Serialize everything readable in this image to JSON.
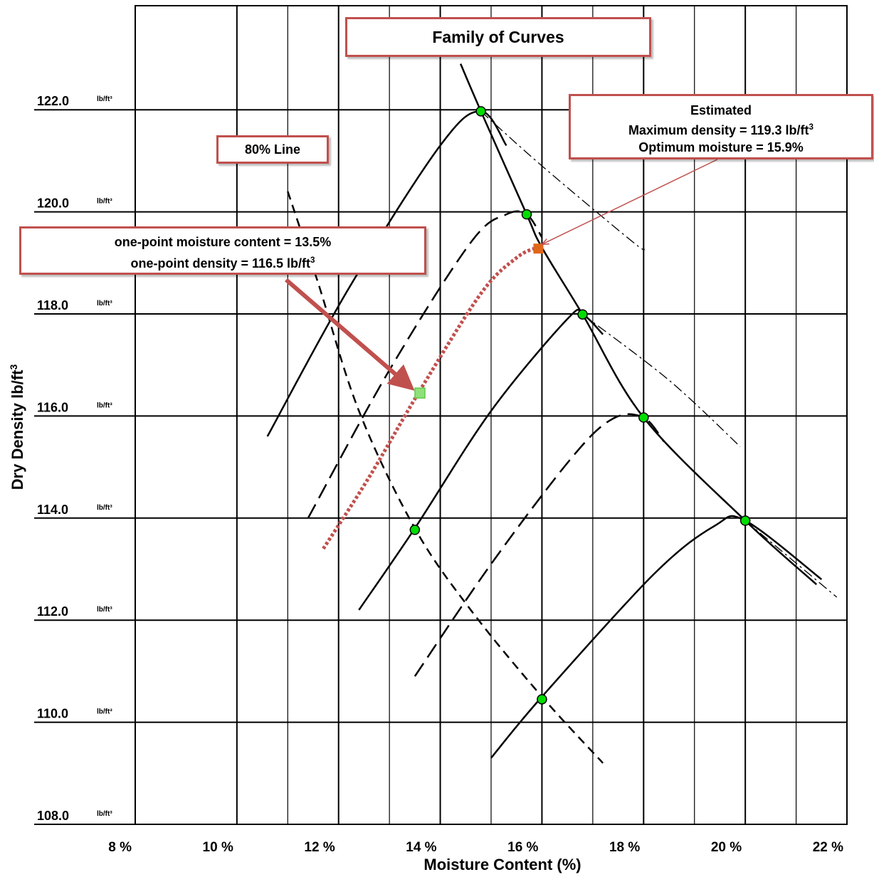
{
  "chart_data": {
    "type": "line",
    "title": "Family of Curves",
    "xlabel": "Moisture Content (%)",
    "ylabel": "Dry Density lb/ft3",
    "xlim": [
      8,
      22
    ],
    "ylim": [
      108,
      124
    ],
    "x_ticks": [
      "8 %",
      "10 %",
      "12 %",
      "14 %",
      "16 %",
      "18 %",
      "20 %",
      "22 %"
    ],
    "y_ticks": [
      "108.0",
      "110.0",
      "112.0",
      "114.0",
      "116.0",
      "118.0",
      "120.0",
      "122.0"
    ],
    "y_tick_unit": "lb/ft³",
    "grid": true,
    "series": [
      {
        "style": "solid",
        "points": [
          [
            10.6,
            115.6
          ],
          [
            12.2,
            118.5
          ],
          [
            14.0,
            121.3
          ],
          [
            14.8,
            121.97
          ],
          [
            15.3,
            121.3
          ]
        ]
      },
      {
        "style": "dashed",
        "points": [
          [
            11.4,
            114.0
          ],
          [
            13.0,
            116.9
          ],
          [
            14.6,
            119.4
          ],
          [
            15.3,
            119.95
          ],
          [
            15.7,
            119.95
          ],
          [
            16.0,
            119.5
          ]
        ]
      },
      {
        "style": "solid",
        "points": [
          [
            12.4,
            112.2
          ],
          [
            13.5,
            113.8
          ],
          [
            15.0,
            116.1
          ],
          [
            16.5,
            117.9
          ],
          [
            16.8,
            117.99
          ],
          [
            17.2,
            117.6
          ]
        ]
      },
      {
        "style": "dashed",
        "points": [
          [
            13.5,
            110.9
          ],
          [
            15.0,
            113.1
          ],
          [
            16.6,
            115.2
          ],
          [
            17.4,
            115.95
          ],
          [
            18.0,
            115.97
          ],
          [
            18.4,
            115.5
          ]
        ]
      },
      {
        "style": "solid",
        "points": [
          [
            15.0,
            109.3
          ],
          [
            16.0,
            110.5
          ],
          [
            18.2,
            112.9
          ],
          [
            19.4,
            113.85
          ],
          [
            20.0,
            113.95
          ],
          [
            21.5,
            112.8
          ]
        ]
      },
      {
        "style": "solid",
        "role": "line of optimums",
        "points": [
          [
            14.4,
            122.9
          ],
          [
            14.8,
            121.97
          ],
          [
            15.7,
            119.95
          ],
          [
            16.0,
            119.3
          ],
          [
            16.8,
            117.99
          ],
          [
            18.0,
            115.97
          ],
          [
            20.0,
            113.95
          ],
          [
            21.4,
            112.7
          ]
        ]
      },
      {
        "style": "dashdot",
        "points": [
          [
            14.8,
            121.97
          ],
          [
            16.0,
            120.9
          ],
          [
            17.8,
            119.4
          ],
          [
            18.0,
            119.3
          ]
        ]
      },
      {
        "style": "dashdot",
        "points": [
          [
            16.8,
            117.99
          ],
          [
            18.5,
            116.7
          ],
          [
            19.9,
            115.4
          ]
        ]
      },
      {
        "style": "dashdot",
        "points": [
          [
            20.0,
            113.95
          ],
          [
            21.8,
            112.45
          ]
        ]
      },
      {
        "style": "dashed",
        "name": "80% Line",
        "points": [
          [
            11.0,
            120.4
          ],
          [
            11.6,
            118.6
          ],
          [
            12.4,
            116.1
          ],
          [
            13.5,
            113.8
          ],
          [
            14.6,
            112.2
          ],
          [
            16.0,
            110.5
          ],
          [
            17.2,
            109.2
          ]
        ]
      },
      {
        "style": "dotted",
        "color": "#c0504d",
        "role": "estimated curve",
        "points": [
          [
            11.7,
            113.4
          ],
          [
            12.6,
            114.8
          ],
          [
            13.6,
            116.5
          ],
          [
            14.8,
            118.4
          ],
          [
            15.5,
            119.1
          ],
          [
            15.9,
            119.3
          ]
        ]
      }
    ],
    "markers": [
      {
        "x": 14.8,
        "y": 121.97,
        "kind": "green-dot"
      },
      {
        "x": 15.7,
        "y": 119.95,
        "kind": "green-dot"
      },
      {
        "x": 16.8,
        "y": 117.99,
        "kind": "green-dot"
      },
      {
        "x": 18.0,
        "y": 115.97,
        "kind": "green-dot"
      },
      {
        "x": 20.0,
        "y": 113.95,
        "kind": "green-dot"
      },
      {
        "x": 13.5,
        "y": 113.77,
        "kind": "green-dot"
      },
      {
        "x": 16.0,
        "y": 110.45,
        "kind": "green-dot"
      },
      {
        "x": 13.6,
        "y": 116.45,
        "kind": "green-square"
      },
      {
        "x": 15.93,
        "y": 119.28,
        "kind": "orange-square"
      }
    ],
    "colors": {
      "callout_border": "#c0504d",
      "marker_green": "#00dd00",
      "marker_orange": "#e0661a",
      "estimated_curve": "#c0504d"
    }
  },
  "callouts": {
    "title": "Family of Curves",
    "line80": "80% Line",
    "estimated": {
      "line1": "Estimated",
      "line2_text": "Maximum density = 119.3 lb/ft",
      "line2_sup": "3",
      "line3": "Optimum moisture = 15.9%"
    },
    "onepoint": {
      "line1": "one-point  moisture content = 13.5%",
      "line2_text": "one-point density = 116.5 lb/ft",
      "line2_sup": "3"
    }
  }
}
